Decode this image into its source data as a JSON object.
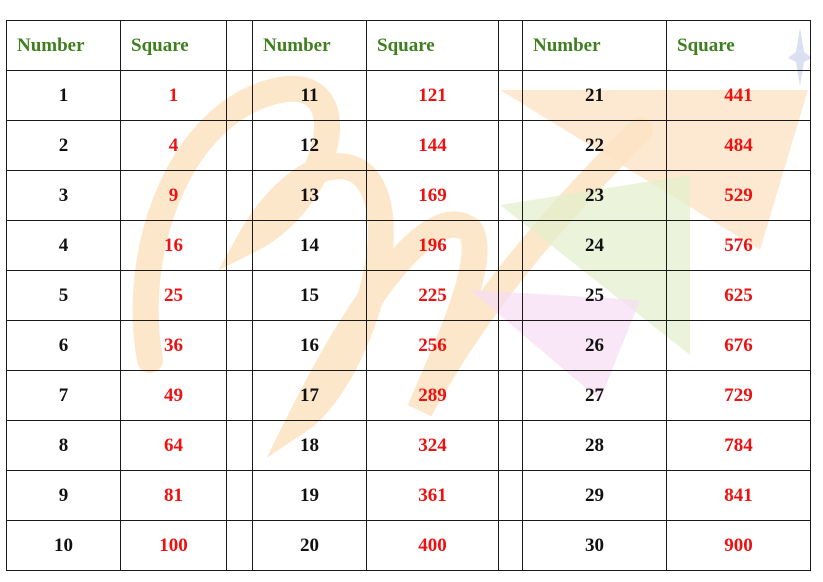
{
  "headers": {
    "number": "Number",
    "square": "Square"
  },
  "colors": {
    "header": "#3f7f1f",
    "number": "#111111",
    "square": "#ee1111",
    "border": "#1a1a1a"
  },
  "rows": [
    [
      {
        "n": "1",
        "s": "1"
      },
      {
        "n": "11",
        "s": "121"
      },
      {
        "n": "21",
        "s": "441"
      }
    ],
    [
      {
        "n": "2",
        "s": "4"
      },
      {
        "n": "12",
        "s": "144"
      },
      {
        "n": "22",
        "s": "484"
      }
    ],
    [
      {
        "n": "3",
        "s": "9"
      },
      {
        "n": "13",
        "s": "169"
      },
      {
        "n": "23",
        "s": "529"
      }
    ],
    [
      {
        "n": "4",
        "s": "16"
      },
      {
        "n": "14",
        "s": "196"
      },
      {
        "n": "24",
        "s": "576"
      }
    ],
    [
      {
        "n": "5",
        "s": "25"
      },
      {
        "n": "15",
        "s": "225"
      },
      {
        "n": "25",
        "s": "625"
      }
    ],
    [
      {
        "n": "6",
        "s": "36"
      },
      {
        "n": "16",
        "s": "256"
      },
      {
        "n": "26",
        "s": "676"
      }
    ],
    [
      {
        "n": "7",
        "s": "49"
      },
      {
        "n": "17",
        "s": "289"
      },
      {
        "n": "27",
        "s": "729"
      }
    ],
    [
      {
        "n": "8",
        "s": "64"
      },
      {
        "n": "18",
        "s": "324"
      },
      {
        "n": "28",
        "s": "784"
      }
    ],
    [
      {
        "n": "9",
        "s": "81"
      },
      {
        "n": "19",
        "s": "361"
      },
      {
        "n": "29",
        "s": "841"
      }
    ],
    [
      {
        "n": "10",
        "s": "100"
      },
      {
        "n": "20",
        "s": "400"
      },
      {
        "n": "30",
        "s": "900"
      }
    ]
  ]
}
